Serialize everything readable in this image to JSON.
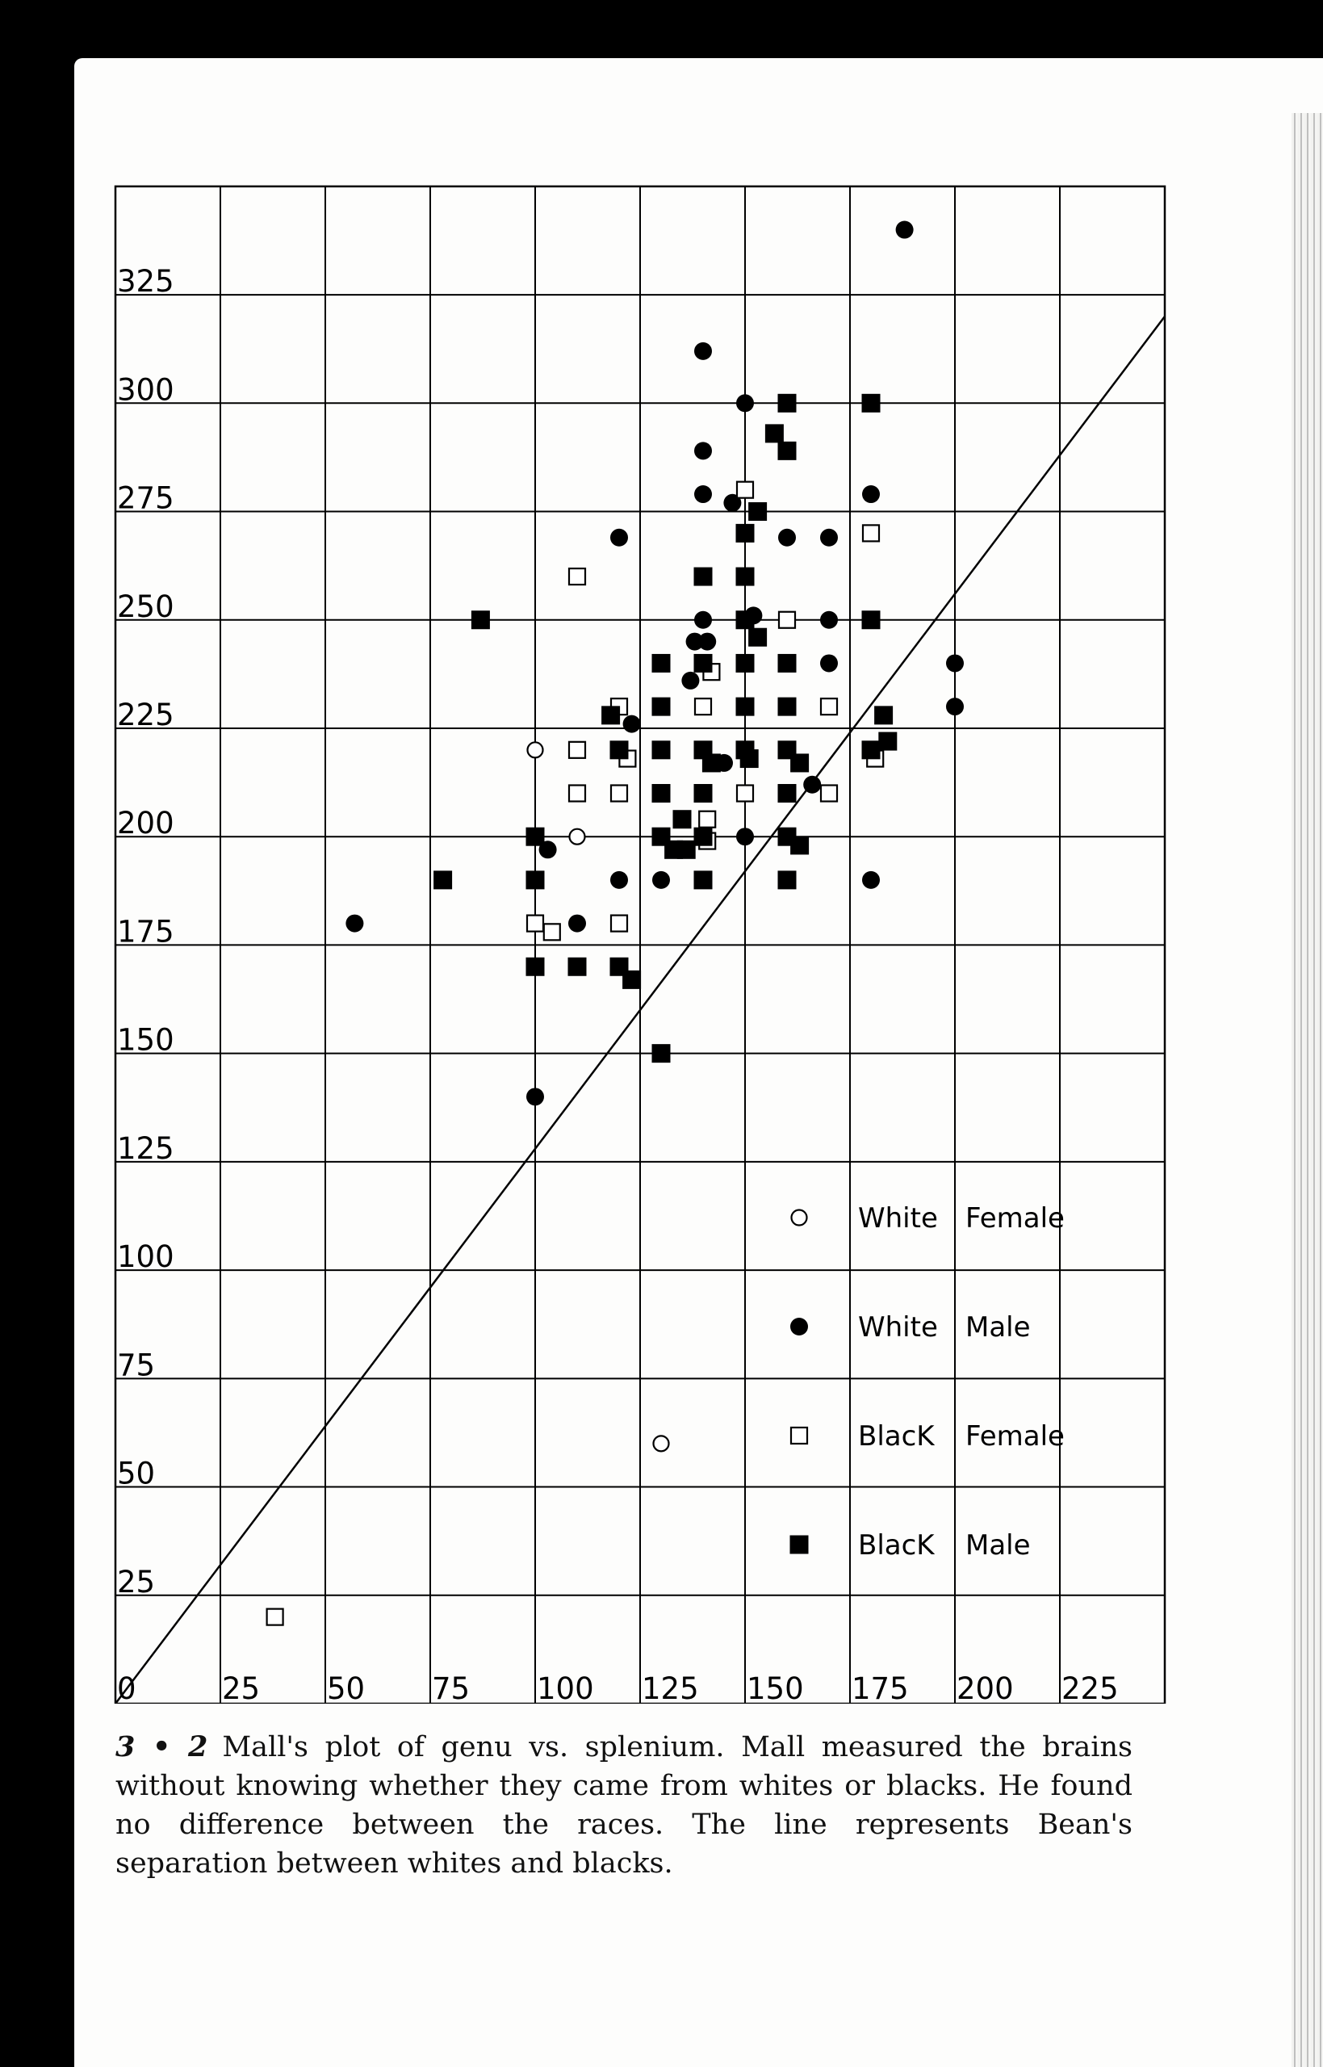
{
  "chart_data": {
    "type": "scatter",
    "title": "",
    "xlabel": "",
    "ylabel": "",
    "xlim": [
      0,
      250
    ],
    "ylim": [
      0,
      350
    ],
    "x_tick_labels": [
      "0",
      "25",
      "50",
      "75",
      "100",
      "125",
      "150",
      "175",
      "200",
      "225"
    ],
    "y_tick_labels": [
      "25",
      "50",
      "75",
      "100",
      "125",
      "150",
      "175",
      "200",
      "225",
      "250",
      "275",
      "300",
      "325"
    ],
    "grid": true,
    "legend": [
      {
        "label_race": "White",
        "label_sex": "Female",
        "marker": "open-circle"
      },
      {
        "label_race": "White",
        "label_sex": "Male",
        "marker": "filled-circle"
      },
      {
        "label_race": "BlacK",
        "label_sex": "Female",
        "marker": "open-square"
      },
      {
        "label_race": "BlacK",
        "label_sex": "Male",
        "marker": "filled-square"
      }
    ],
    "separation_line": {
      "name": "Bean's separation",
      "x": [
        0,
        250
      ],
      "y": [
        0,
        320
      ]
    },
    "series": [
      {
        "name": "White Female",
        "marker": "open-circle",
        "points": [
          [
            100,
            220
          ],
          [
            110,
            200
          ],
          [
            130,
            60
          ]
        ]
      },
      {
        "name": "White Male",
        "marker": "filled-circle",
        "points": [
          [
            188,
            340
          ],
          [
            140,
            312
          ],
          [
            140,
            289
          ],
          [
            140,
            279
          ],
          [
            120,
            269
          ],
          [
            150,
            300
          ],
          [
            160,
            269
          ],
          [
            170,
            269
          ],
          [
            180,
            279
          ],
          [
            138,
            245
          ],
          [
            141,
            245
          ],
          [
            140,
            250
          ],
          [
            152,
            251
          ],
          [
            137,
            236
          ],
          [
            147,
            277
          ],
          [
            170,
            250
          ],
          [
            170,
            240
          ],
          [
            123,
            226
          ],
          [
            150,
            220
          ],
          [
            145,
            217
          ],
          [
            166,
            212
          ],
          [
            200,
            240
          ],
          [
            200,
            230
          ],
          [
            150,
            200
          ],
          [
            103,
            197
          ],
          [
            110,
            180
          ],
          [
            120,
            190
          ],
          [
            130,
            190
          ],
          [
            180,
            190
          ],
          [
            57,
            180
          ],
          [
            100,
            140
          ]
        ]
      },
      {
        "name": "Black Female",
        "marker": "open-square",
        "points": [
          [
            38,
            20
          ],
          [
            110,
            260
          ],
          [
            150,
            280
          ],
          [
            180,
            270
          ],
          [
            160,
            250
          ],
          [
            142,
            238
          ],
          [
            120,
            230
          ],
          [
            140,
            230
          ],
          [
            170,
            230
          ],
          [
            110,
            220
          ],
          [
            122,
            218
          ],
          [
            181,
            218
          ],
          [
            110,
            210
          ],
          [
            120,
            210
          ],
          [
            150,
            210
          ],
          [
            141,
            204
          ],
          [
            141,
            199
          ],
          [
            170,
            210
          ],
          [
            100,
            180
          ],
          [
            104,
            178
          ],
          [
            120,
            180
          ]
        ]
      },
      {
        "name": "Black Male",
        "marker": "filled-square",
        "points": [
          [
            160,
            300
          ],
          [
            180,
            300
          ],
          [
            157,
            293
          ],
          [
            160,
            289
          ],
          [
            153,
            275
          ],
          [
            150,
            270
          ],
          [
            140,
            260
          ],
          [
            150,
            260
          ],
          [
            87,
            250
          ],
          [
            150,
            250
          ],
          [
            180,
            250
          ],
          [
            153,
            246
          ],
          [
            130,
            240
          ],
          [
            140,
            240
          ],
          [
            150,
            240
          ],
          [
            160,
            240
          ],
          [
            130,
            230
          ],
          [
            150,
            230
          ],
          [
            160,
            230
          ],
          [
            118,
            228
          ],
          [
            183,
            228
          ],
          [
            120,
            220
          ],
          [
            130,
            220
          ],
          [
            140,
            220
          ],
          [
            150,
            220
          ],
          [
            160,
            220
          ],
          [
            180,
            220
          ],
          [
            184,
            222
          ],
          [
            142,
            217
          ],
          [
            151,
            218
          ],
          [
            163,
            217
          ],
          [
            130,
            210
          ],
          [
            140,
            210
          ],
          [
            160,
            210
          ],
          [
            100,
            200
          ],
          [
            135,
            204
          ],
          [
            130,
            200
          ],
          [
            140,
            200
          ],
          [
            160,
            200
          ],
          [
            163,
            198
          ],
          [
            133,
            197
          ],
          [
            136,
            197
          ],
          [
            78,
            190
          ],
          [
            100,
            190
          ],
          [
            140,
            190
          ],
          [
            160,
            190
          ],
          [
            100,
            170
          ],
          [
            110,
            170
          ],
          [
            120,
            170
          ],
          [
            123,
            167
          ],
          [
            130,
            150
          ]
        ]
      }
    ]
  },
  "caption": {
    "figure_number": "3 • 2",
    "text": "Mall's plot of genu vs. splenium. Mall measured the brains without knowing whether they came from whites or blacks. He found no difference between the races. The line represents Bean's separation between whites and blacks."
  },
  "colors": {
    "ink": "#000000",
    "paper": "#fdfdfc",
    "background": "#000000"
  }
}
